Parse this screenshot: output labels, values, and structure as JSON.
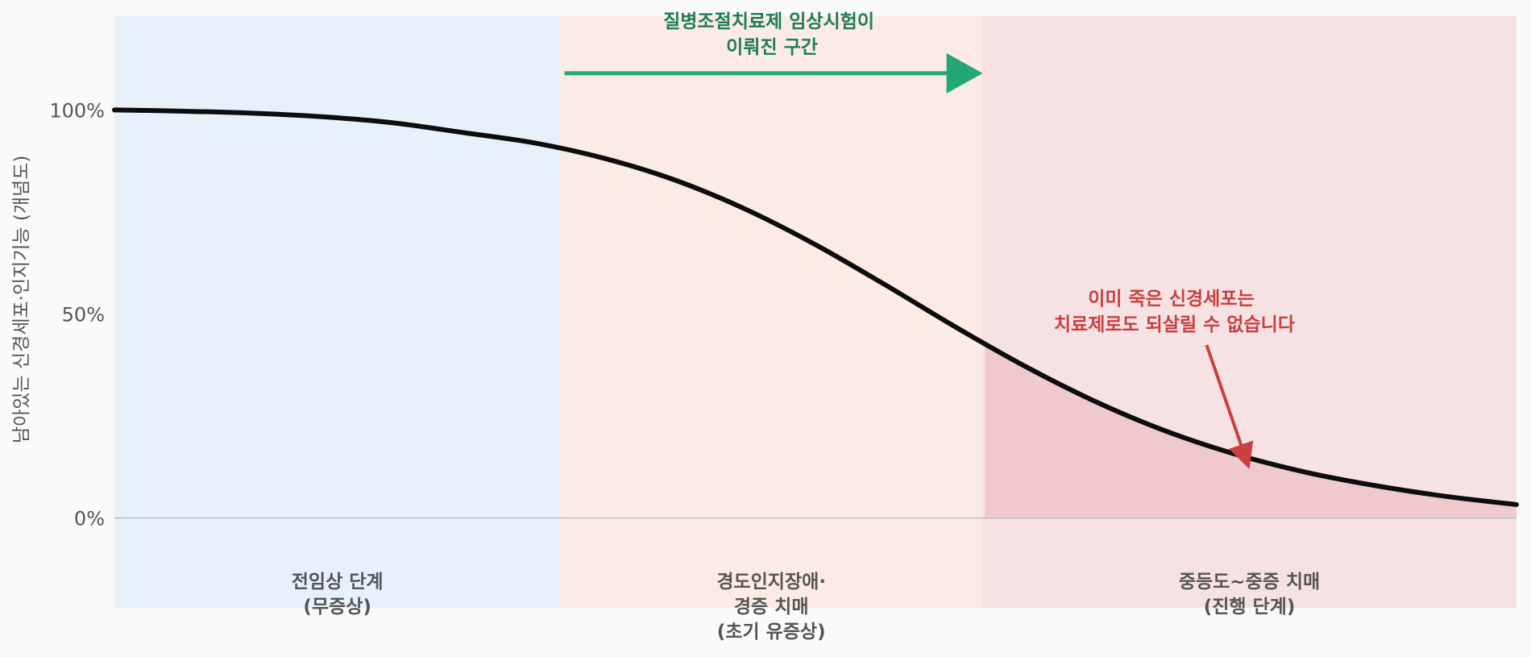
{
  "chart_data": {
    "type": "line",
    "xlabel": "",
    "ylabel": "남아있는 신경세포·인지기능 (개념도)",
    "ylim": [
      -22,
      123
    ],
    "yticks": [
      {
        "value": 0,
        "label": "0%"
      },
      {
        "value": 50,
        "label": "50%"
      },
      {
        "value": 100,
        "label": "100%"
      }
    ],
    "grid": false,
    "legend": "none",
    "series": [
      {
        "color": "#0d0d0d",
        "x": [
          0,
          5,
          10,
          15,
          20,
          25,
          30,
          35,
          40,
          45,
          50,
          55,
          60,
          65,
          70,
          75,
          80,
          85,
          90,
          95,
          100
        ],
        "y": [
          100,
          99.7,
          99.2,
          98.3,
          96.8,
          94.4,
          91.9,
          88.1,
          82.8,
          75.7,
          67,
          57.1,
          46.8,
          37.1,
          28.5,
          21.3,
          15.6,
          11.2,
          7.9,
          5.3,
          3.3
        ]
      }
    ],
    "phases": [
      {
        "x0": 0,
        "x1": 31.8,
        "color": "#e7f1fb",
        "lines": [
          "전임상 단계",
          "(무증상)"
        ]
      },
      {
        "x0": 31.8,
        "x1": 61.9,
        "color": "#fcebe4",
        "lines": [
          "경도인지장애·",
          "경증 치매",
          "(초기 유증상)"
        ]
      },
      {
        "x0": 61.9,
        "x1": 100,
        "color": "#f6e2e3",
        "lines": [
          "중등도~중증 치매",
          "(진행 단계)"
        ]
      }
    ],
    "shaded_region": {
      "x_from": 62.1,
      "color": "#efc9cb"
    },
    "annotations": {
      "trial": {
        "lines": [
          "질병조절치료제 임상시험이",
          "이뤄진 구간"
        ],
        "arrow_from": 32.1,
        "arrow_to": 61.7,
        "y": 109,
        "color": "#22a877"
      },
      "dead_cells": {
        "lines": [
          "이미 죽은 신경세포는",
          "치료제로도 되살릴 수 없습니다"
        ],
        "arrow_to_x": 80.8,
        "arrow_to_y": 13.5,
        "color": "#c8403f"
      }
    },
    "zero_line_color": "#c0c0c0"
  }
}
